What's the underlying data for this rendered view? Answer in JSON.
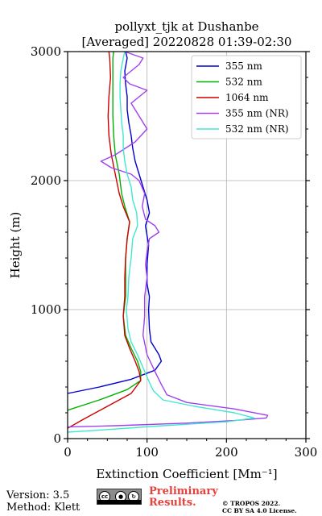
{
  "chart_data": {
    "type": "line",
    "title_line1": "pollyxt_tjk at Dushanbe",
    "title_line2": "[Averaged] 20220828 01:39-02:30",
    "xlabel": "Extinction Coefficient [Mm⁻¹]",
    "ylabel": "Height (m)",
    "xlim": [
      0,
      300
    ],
    "ylim": [
      0,
      3000
    ],
    "xticks": [
      0,
      100,
      200,
      300
    ],
    "yticks": [
      0,
      1000,
      2000,
      3000
    ],
    "grid": true,
    "legend_position": "top-right",
    "series": [
      {
        "name": "355 nm",
        "color": "#0000cd",
        "points": [
          [
            0,
            350
          ],
          [
            40,
            400
          ],
          [
            80,
            460
          ],
          [
            110,
            530
          ],
          [
            118,
            600
          ],
          [
            115,
            650
          ],
          [
            105,
            750
          ],
          [
            103,
            850
          ],
          [
            102,
            1000
          ],
          [
            103,
            1100
          ],
          [
            100,
            1200
          ],
          [
            100,
            1350
          ],
          [
            102,
            1500
          ],
          [
            98,
            1650
          ],
          [
            103,
            1750
          ],
          [
            100,
            1850
          ],
          [
            95,
            1950
          ],
          [
            90,
            2050
          ],
          [
            85,
            2150
          ],
          [
            82,
            2250
          ],
          [
            80,
            2350
          ],
          [
            77,
            2450
          ],
          [
            75,
            2550
          ],
          [
            75,
            2650
          ],
          [
            73,
            2750
          ],
          [
            72,
            2850
          ],
          [
            75,
            2950
          ],
          [
            73,
            3000
          ]
        ]
      },
      {
        "name": "532 nm",
        "color": "#00b000",
        "points": [
          [
            0,
            220
          ],
          [
            40,
            300
          ],
          [
            75,
            380
          ],
          [
            92,
            450
          ],
          [
            92,
            520
          ],
          [
            88,
            600
          ],
          [
            80,
            700
          ],
          [
            73,
            800
          ],
          [
            70,
            950
          ],
          [
            73,
            1100
          ],
          [
            73,
            1250
          ],
          [
            73,
            1400
          ],
          [
            75,
            1550
          ],
          [
            78,
            1680
          ],
          [
            72,
            1800
          ],
          [
            68,
            1900
          ],
          [
            65,
            2050
          ],
          [
            60,
            2200
          ],
          [
            58,
            2350
          ],
          [
            57,
            2500
          ],
          [
            57,
            2650
          ],
          [
            57,
            2800
          ],
          [
            57,
            2950
          ],
          [
            58,
            3000
          ]
        ]
      },
      {
        "name": "1064 nm",
        "color": "#cc0000",
        "points": [
          [
            0,
            80
          ],
          [
            20,
            150
          ],
          [
            50,
            250
          ],
          [
            80,
            350
          ],
          [
            92,
            450
          ],
          [
            90,
            520
          ],
          [
            85,
            600
          ],
          [
            78,
            700
          ],
          [
            72,
            800
          ],
          [
            70,
            950
          ],
          [
            72,
            1100
          ],
          [
            72,
            1250
          ],
          [
            73,
            1400
          ],
          [
            75,
            1550
          ],
          [
            78,
            1680
          ],
          [
            70,
            1800
          ],
          [
            65,
            1900
          ],
          [
            60,
            2050
          ],
          [
            55,
            2200
          ],
          [
            52,
            2350
          ],
          [
            51,
            2500
          ],
          [
            52,
            2650
          ],
          [
            54,
            2800
          ],
          [
            53,
            2950
          ],
          [
            52,
            3000
          ]
        ]
      },
      {
        "name": "355 nm (NR)",
        "color": "#a040f0",
        "points": [
          [
            0,
            90
          ],
          [
            60,
            100
          ],
          [
            150,
            120
          ],
          [
            210,
            140
          ],
          [
            250,
            160
          ],
          [
            252,
            180
          ],
          [
            210,
            230
          ],
          [
            150,
            280
          ],
          [
            125,
            340
          ],
          [
            118,
            420
          ],
          [
            110,
            520
          ],
          [
            100,
            650
          ],
          [
            95,
            800
          ],
          [
            97,
            950
          ],
          [
            97,
            1100
          ],
          [
            100,
            1250
          ],
          [
            98,
            1350
          ],
          [
            100,
            1450
          ],
          [
            103,
            1550
          ],
          [
            115,
            1600
          ],
          [
            110,
            1650
          ],
          [
            98,
            1700
          ],
          [
            94,
            1800
          ],
          [
            97,
            1900
          ],
          [
            90,
            2000
          ],
          [
            80,
            2050
          ],
          [
            55,
            2100
          ],
          [
            42,
            2150
          ],
          [
            60,
            2200
          ],
          [
            85,
            2300
          ],
          [
            100,
            2400
          ],
          [
            90,
            2500
          ],
          [
            80,
            2600
          ],
          [
            100,
            2700
          ],
          [
            78,
            2750
          ],
          [
            70,
            2800
          ],
          [
            90,
            2900
          ],
          [
            95,
            2950
          ],
          [
            72,
            3000
          ]
        ]
      },
      {
        "name": "532 nm (NR)",
        "color": "#40e8d0",
        "points": [
          [
            0,
            50
          ],
          [
            50,
            70
          ],
          [
            120,
            100
          ],
          [
            200,
            130
          ],
          [
            235,
            160
          ],
          [
            210,
            200
          ],
          [
            160,
            250
          ],
          [
            120,
            300
          ],
          [
            108,
            370
          ],
          [
            102,
            450
          ],
          [
            95,
            550
          ],
          [
            88,
            650
          ],
          [
            80,
            750
          ],
          [
            76,
            850
          ],
          [
            74,
            1000
          ],
          [
            76,
            1100
          ],
          [
            77,
            1250
          ],
          [
            80,
            1400
          ],
          [
            82,
            1550
          ],
          [
            88,
            1650
          ],
          [
            87,
            1750
          ],
          [
            82,
            1850
          ],
          [
            80,
            1950
          ],
          [
            75,
            2050
          ],
          [
            72,
            2150
          ],
          [
            70,
            2250
          ],
          [
            70,
            2350
          ],
          [
            68,
            2450
          ],
          [
            67,
            2550
          ],
          [
            66,
            2650
          ],
          [
            66,
            2750
          ],
          [
            67,
            2850
          ],
          [
            70,
            2950
          ],
          [
            72,
            3000
          ]
        ]
      }
    ]
  },
  "footer": {
    "version": "Version: 3.5",
    "method": "Method: Klett",
    "preliminary_line1": "Preliminary",
    "preliminary_line2": "Results.",
    "copyright_line1": "© TROPOS 2022.",
    "copyright_line2": "CC BY SA 4.0 License."
  },
  "icons": {
    "license_badge": "cc-by-sa-icon"
  }
}
